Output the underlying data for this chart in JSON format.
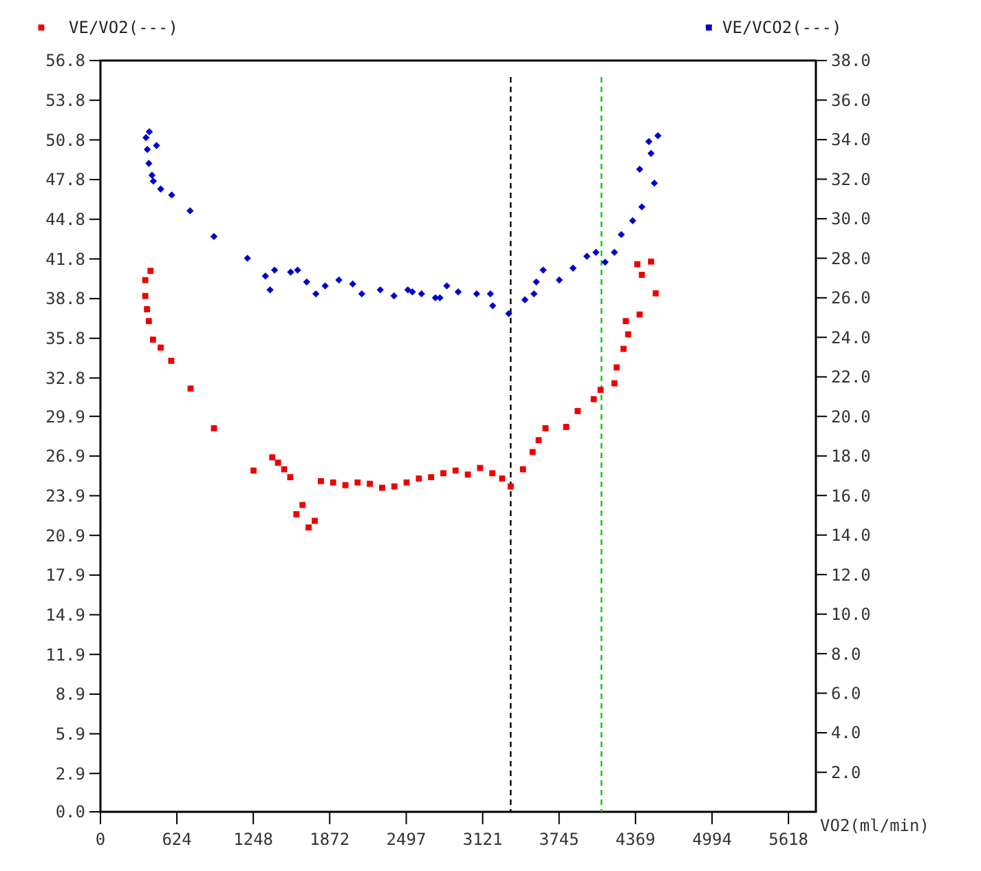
{
  "chart_data": {
    "type": "scatter",
    "xlabel": "VO2(ml/min)",
    "xlim": [
      0,
      5842
    ],
    "xticks": [
      0,
      624,
      1248,
      1872,
      2497,
      3121,
      3745,
      4369,
      4994,
      5618
    ],
    "ylim": [
      0,
      56.8
    ],
    "yticks": [
      {
        "value": 0,
        "label": "0.0"
      },
      2.9,
      5.9,
      8.9,
      11.9,
      14.9,
      17.9,
      20.9,
      23.9,
      26.9,
      29.9,
      32.8,
      35.8,
      38.8,
      41.8,
      44.8,
      47.8,
      50.8,
      53.8,
      56.8
    ],
    "y2lim": [
      0,
      38
    ],
    "y2ticks": [
      {
        "value": 2,
        "label": "2.0"
      },
      {
        "value": 4,
        "label": "4.0"
      },
      {
        "value": 6,
        "label": "6.0"
      },
      {
        "value": 8,
        "label": "8.0"
      },
      {
        "value": 10,
        "label": "10.0"
      },
      {
        "value": 12,
        "label": "12.0"
      },
      {
        "value": 14,
        "label": "14.0"
      },
      {
        "value": 16,
        "label": "16.0"
      },
      {
        "value": 18,
        "label": "18.0"
      },
      {
        "value": 20,
        "label": "20.0"
      },
      {
        "value": 22,
        "label": "22.0"
      },
      {
        "value": 24,
        "label": "24.0"
      },
      {
        "value": 26,
        "label": "26.0"
      },
      {
        "value": 28,
        "label": "28.0"
      },
      {
        "value": 30,
        "label": "30.0"
      },
      {
        "value": 32,
        "label": "32.0"
      },
      {
        "value": 34,
        "label": "34.0"
      },
      {
        "value": 36,
        "label": "36.0"
      },
      {
        "value": 38,
        "label": "38.0"
      }
    ],
    "grid": false,
    "legend": "top",
    "ref_lines": [
      {
        "axis": "x",
        "value": 3350,
        "color": "#000000",
        "line_style": "dashed"
      },
      {
        "axis": "x",
        "value": 4091,
        "color": "#00cc00",
        "line_style": "dashed"
      }
    ],
    "series": [
      {
        "name": "VE/VO2(---)",
        "color": "#ee0000",
        "marker": "square",
        "x": [
          366,
          366,
          380,
          395,
          409,
          429,
          492,
          578,
          736,
          927,
          1250,
          1403,
          1450,
          1500,
          1550,
          1600,
          1650,
          1700,
          1750,
          1800,
          1900,
          2000,
          2100,
          2200,
          2300,
          2400,
          2500,
          2600,
          2700,
          2800,
          2900,
          3000,
          3100,
          3200,
          3280,
          3350,
          3450,
          3529,
          3578,
          3634,
          3803,
          3897,
          4028,
          4084,
          4197,
          4215,
          4271,
          4309,
          4290,
          4403,
          4384,
          4421,
          4496,
          4534
        ],
        "values": [
          40.2,
          39.0,
          38.0,
          37.1,
          40.9,
          35.7,
          35.1,
          34.1,
          32.0,
          29.0,
          25.8,
          26.8,
          26.4,
          25.9,
          25.3,
          22.5,
          23.2,
          21.5,
          22.0,
          25.0,
          24.9,
          24.7,
          24.9,
          24.8,
          24.5,
          24.6,
          24.9,
          25.2,
          25.3,
          25.6,
          25.8,
          25.5,
          26.0,
          25.6,
          25.2,
          24.6,
          25.9,
          27.2,
          28.1,
          29.0,
          29.1,
          30.3,
          31.2,
          31.9,
          32.4,
          33.6,
          35.0,
          36.1,
          37.1,
          37.6,
          41.4,
          40.6,
          41.6,
          39.2
        ]
      },
      {
        "name": "VE/VCO2(---)",
        "color": "#0000cc",
        "marker": "diamond",
        "axis": "y2",
        "x": [
          372,
          383,
          395,
          399,
          421,
          432,
          458,
          492,
          582,
          732,
          927,
          1200,
          1347,
          1385,
          1422,
          1553,
          1610,
          1684,
          1759,
          1835,
          1947,
          2060,
          2134,
          2285,
          2397,
          2510,
          2547,
          2622,
          2735,
          2772,
          2828,
          2921,
          3072,
          3184,
          3203,
          3334,
          3466,
          3540,
          3559,
          3615,
          3747,
          3859,
          3972,
          4046,
          4121,
          4197,
          4253,
          4346,
          4403,
          4421,
          4478,
          4496,
          4523,
          4552
        ],
        "values": [
          34.1,
          33.5,
          32.8,
          34.4,
          32.2,
          31.9,
          33.7,
          31.5,
          31.2,
          30.4,
          29.1,
          28.0,
          27.1,
          26.4,
          27.4,
          27.3,
          27.4,
          26.8,
          26.2,
          26.6,
          26.9,
          26.7,
          26.2,
          26.4,
          26.1,
          26.4,
          26.3,
          26.2,
          26.0,
          26.0,
          26.6,
          26.3,
          26.2,
          26.2,
          25.6,
          25.2,
          25.9,
          26.2,
          26.8,
          27.4,
          26.9,
          27.5,
          28.1,
          28.3,
          27.8,
          28.3,
          29.2,
          29.9,
          32.5,
          30.6,
          33.9,
          33.3,
          31.8,
          34.2
        ]
      }
    ]
  }
}
